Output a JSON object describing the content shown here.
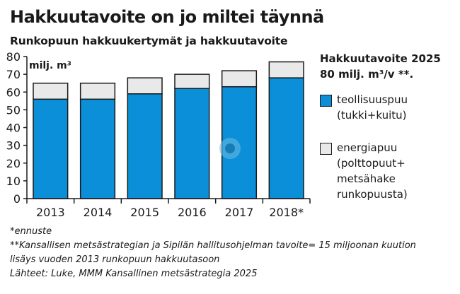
{
  "header": {
    "title": "Hakkuutavoite on jo miltei täynnä",
    "subtitle": "Runkopuun hakkuukertymät ja hakkuutavoite"
  },
  "legend": {
    "heading_line1": "Hakkuutavoite 2025",
    "heading_line2": "80 milj. m³/v **.",
    "items": [
      {
        "label": "teollisuuspuu\n(tukki+kuitu)",
        "color": "#0a8fd8"
      },
      {
        "label": "energiapuu\n(polttopuut+\nmetsähake\nrunkopuusta)",
        "color": "#e9e9ea"
      }
    ]
  },
  "notes": {
    "line1": "*ennuste",
    "line2": "**Kansallisen metsästrategian ja Sipilän hallitusohjelman tavoite= 15 miljoonan kuution",
    "line3": "lisäys vuoden 2013 runkopuun hakkuutasoon",
    "line4": "Lähteet: Luke, MMM Kansallinen metsästrategia 2025"
  },
  "chart_data": {
    "type": "bar",
    "stacked": true,
    "categories": [
      "2013",
      "2014",
      "2015",
      "2016",
      "2017",
      "2018*"
    ],
    "series": [
      {
        "name": "teollisuuspuu (tukki+kuitu)",
        "values": [
          56,
          56,
          59,
          62,
          63,
          68
        ],
        "color": "#0a8fd8"
      },
      {
        "name": "energiapuu (polttopuut+metsähake runkopuusta)",
        "values": [
          9,
          9,
          9,
          8,
          9,
          9
        ],
        "color": "#e9e9ea"
      }
    ],
    "ylabel": "milj. m³",
    "ylim": [
      0,
      80
    ],
    "yticks": [
      0,
      10,
      20,
      30,
      40,
      50,
      60,
      70,
      80
    ],
    "grid": false,
    "legend_position": "right"
  }
}
